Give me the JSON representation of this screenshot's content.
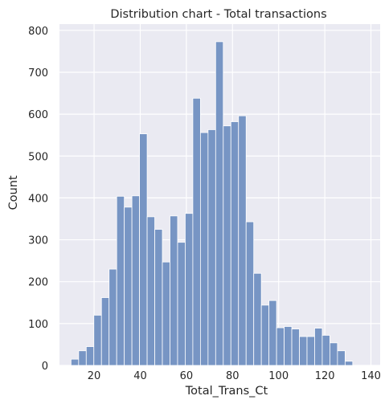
{
  "chart_data": {
    "type": "bar",
    "title": "Distribution chart - Total transactions",
    "xlabel": "Total_Trans_Ct",
    "ylabel": "Count",
    "xlim": [
      5,
      144
    ],
    "ylim": [
      0,
      815
    ],
    "xticks": [
      20,
      40,
      60,
      80,
      100,
      120,
      140
    ],
    "yticks": [
      0,
      100,
      200,
      300,
      400,
      500,
      600,
      700,
      800
    ],
    "grid": true,
    "bin_width": 3.3,
    "bin_start": 10,
    "values": [
      15,
      35,
      45,
      120,
      162,
      230,
      404,
      378,
      405,
      553,
      355,
      325,
      247,
      357,
      294,
      363,
      638,
      556,
      563,
      773,
      572,
      582,
      596,
      343,
      220,
      144,
      155,
      90,
      93,
      87,
      69,
      69,
      89,
      72,
      54,
      35,
      10
    ],
    "colors": {
      "background": "#eaeaf2",
      "grid": "#ffffff",
      "bar": "#7795c4",
      "bar_edge": "#ffffff"
    }
  }
}
